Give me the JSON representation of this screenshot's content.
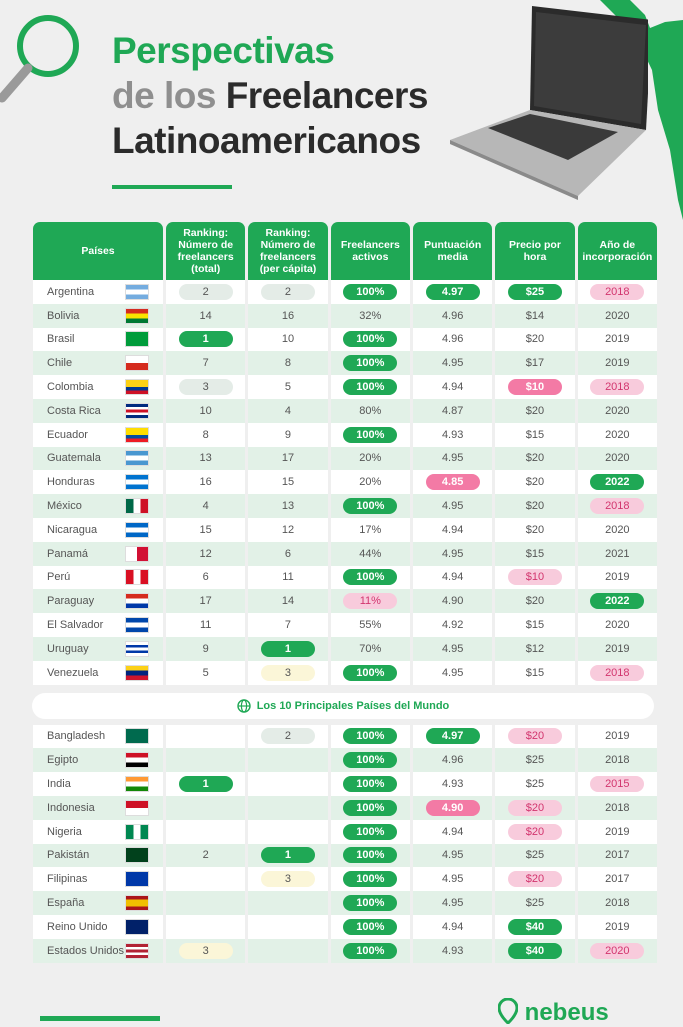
{
  "title": {
    "line1": "Perspectivas",
    "line2a": "de los ",
    "line2b": "Freelancers",
    "line3": "Latinoamericanos"
  },
  "headers": [
    "Países",
    "Ranking: Número de freelancers (total)",
    "Ranking: Número de freelancers (per cápita)",
    "Freelancers activos",
    "Puntuación media",
    "Precio por hora",
    "Año de incorporación"
  ],
  "banner": "Los 10 Principales Países del Mundo",
  "logo": "nebeus",
  "colors": {
    "green": "#1fa855",
    "pink": "#f37aa5"
  },
  "latam": [
    {
      "name": "Argentina",
      "flag": "ar",
      "c": [
        {
          "v": "2",
          "s": "pl"
        },
        {
          "v": "2",
          "s": "pl"
        },
        {
          "v": "100%",
          "s": "pg"
        },
        {
          "v": "4.97",
          "s": "pg"
        },
        {
          "v": "$25",
          "s": "pg"
        },
        {
          "v": "2018",
          "s": "pk"
        }
      ]
    },
    {
      "name": "Bolivia",
      "flag": "bo",
      "c": [
        {
          "v": "14"
        },
        {
          "v": "16"
        },
        {
          "v": "32%"
        },
        {
          "v": "4.96"
        },
        {
          "v": "$14"
        },
        {
          "v": "2020"
        }
      ]
    },
    {
      "name": "Brasil",
      "flag": "br",
      "c": [
        {
          "v": "1",
          "s": "pg"
        },
        {
          "v": "10"
        },
        {
          "v": "100%",
          "s": "pg"
        },
        {
          "v": "4.96"
        },
        {
          "v": "$20"
        },
        {
          "v": "2019"
        }
      ]
    },
    {
      "name": "Chile",
      "flag": "cl",
      "c": [
        {
          "v": "7"
        },
        {
          "v": "8"
        },
        {
          "v": "100%",
          "s": "pg"
        },
        {
          "v": "4.95"
        },
        {
          "v": "$17"
        },
        {
          "v": "2019"
        }
      ]
    },
    {
      "name": "Colombia",
      "flag": "co",
      "c": [
        {
          "v": "3",
          "s": "pl"
        },
        {
          "v": "5"
        },
        {
          "v": "100%",
          "s": "pg"
        },
        {
          "v": "4.94"
        },
        {
          "v": "$10",
          "s": "pp"
        },
        {
          "v": "2018",
          "s": "pk"
        }
      ]
    },
    {
      "name": "Costa Rica",
      "flag": "cr",
      "c": [
        {
          "v": "10"
        },
        {
          "v": "4"
        },
        {
          "v": "80%"
        },
        {
          "v": "4.87"
        },
        {
          "v": "$20"
        },
        {
          "v": "2020"
        }
      ]
    },
    {
      "name": "Ecuador",
      "flag": "ec",
      "c": [
        {
          "v": "8"
        },
        {
          "v": "9"
        },
        {
          "v": "100%",
          "s": "pg"
        },
        {
          "v": "4.93"
        },
        {
          "v": "$15"
        },
        {
          "v": "2020"
        }
      ]
    },
    {
      "name": "Guatemala",
      "flag": "gt",
      "c": [
        {
          "v": "13"
        },
        {
          "v": "17"
        },
        {
          "v": "20%"
        },
        {
          "v": "4.95"
        },
        {
          "v": "$20"
        },
        {
          "v": "2020"
        }
      ]
    },
    {
      "name": "Honduras",
      "flag": "hn",
      "c": [
        {
          "v": "16"
        },
        {
          "v": "15"
        },
        {
          "v": "20%"
        },
        {
          "v": "4.85",
          "s": "pp"
        },
        {
          "v": "$20"
        },
        {
          "v": "2022",
          "s": "pg"
        }
      ]
    },
    {
      "name": "México",
      "flag": "mx",
      "c": [
        {
          "v": "4"
        },
        {
          "v": "13"
        },
        {
          "v": "100%",
          "s": "pg"
        },
        {
          "v": "4.95"
        },
        {
          "v": "$20"
        },
        {
          "v": "2018",
          "s": "pk"
        }
      ]
    },
    {
      "name": "Nicaragua",
      "flag": "ni",
      "c": [
        {
          "v": "15"
        },
        {
          "v": "12"
        },
        {
          "v": "17%"
        },
        {
          "v": "4.94"
        },
        {
          "v": "$20"
        },
        {
          "v": "2020"
        }
      ]
    },
    {
      "name": "Panamá",
      "flag": "pa",
      "c": [
        {
          "v": "12"
        },
        {
          "v": "6"
        },
        {
          "v": "44%"
        },
        {
          "v": "4.95"
        },
        {
          "v": "$15"
        },
        {
          "v": "2021"
        }
      ]
    },
    {
      "name": "Perú",
      "flag": "pe",
      "c": [
        {
          "v": "6"
        },
        {
          "v": "11"
        },
        {
          "v": "100%",
          "s": "pg"
        },
        {
          "v": "4.94"
        },
        {
          "v": "$10",
          "s": "pk"
        },
        {
          "v": "2019"
        }
      ]
    },
    {
      "name": "Paraguay",
      "flag": "py",
      "c": [
        {
          "v": "17"
        },
        {
          "v": "14"
        },
        {
          "v": "11%",
          "s": "pk"
        },
        {
          "v": "4.90"
        },
        {
          "v": "$20"
        },
        {
          "v": "2022",
          "s": "pg"
        }
      ]
    },
    {
      "name": "El Salvador",
      "flag": "sv",
      "c": [
        {
          "v": "11"
        },
        {
          "v": "7"
        },
        {
          "v": "55%"
        },
        {
          "v": "4.92"
        },
        {
          "v": "$15"
        },
        {
          "v": "2020"
        }
      ]
    },
    {
      "name": "Uruguay",
      "flag": "uy",
      "c": [
        {
          "v": "9"
        },
        {
          "v": "1",
          "s": "pg"
        },
        {
          "v": "70%"
        },
        {
          "v": "4.95"
        },
        {
          "v": "$12"
        },
        {
          "v": "2019"
        }
      ]
    },
    {
      "name": "Venezuela",
      "flag": "ve",
      "c": [
        {
          "v": "5"
        },
        {
          "v": "3",
          "s": "py"
        },
        {
          "v": "100%",
          "s": "pg"
        },
        {
          "v": "4.95"
        },
        {
          "v": "$15"
        },
        {
          "v": "2018",
          "s": "pk"
        }
      ]
    }
  ],
  "world": [
    {
      "name": "Bangladesh",
      "flag": "bd",
      "c": [
        {
          "v": ""
        },
        {
          "v": "2",
          "s": "pl"
        },
        {
          "v": "100%",
          "s": "pg"
        },
        {
          "v": "4.97",
          "s": "pg"
        },
        {
          "v": "$20",
          "s": "pk"
        },
        {
          "v": "2019"
        }
      ]
    },
    {
      "name": "Egipto",
      "flag": "eg",
      "c": [
        {
          "v": ""
        },
        {
          "v": ""
        },
        {
          "v": "100%",
          "s": "pg"
        },
        {
          "v": "4.96"
        },
        {
          "v": "$25"
        },
        {
          "v": "2018"
        }
      ]
    },
    {
      "name": "India",
      "flag": "in",
      "c": [
        {
          "v": "1",
          "s": "pg"
        },
        {
          "v": ""
        },
        {
          "v": "100%",
          "s": "pg"
        },
        {
          "v": "4.93"
        },
        {
          "v": "$25"
        },
        {
          "v": "2015",
          "s": "pk"
        }
      ]
    },
    {
      "name": "Indonesia",
      "flag": "id",
      "c": [
        {
          "v": ""
        },
        {
          "v": ""
        },
        {
          "v": "100%",
          "s": "pg"
        },
        {
          "v": "4.90",
          "s": "pp"
        },
        {
          "v": "$20",
          "s": "pk"
        },
        {
          "v": "2018"
        }
      ]
    },
    {
      "name": "Nigeria",
      "flag": "ng",
      "c": [
        {
          "v": ""
        },
        {
          "v": ""
        },
        {
          "v": "100%",
          "s": "pg"
        },
        {
          "v": "4.94"
        },
        {
          "v": "$20",
          "s": "pk"
        },
        {
          "v": "2019"
        }
      ]
    },
    {
      "name": "Pakistán",
      "flag": "pk",
      "c": [
        {
          "v": "2"
        },
        {
          "v": "1",
          "s": "pg"
        },
        {
          "v": "100%",
          "s": "pg"
        },
        {
          "v": "4.95"
        },
        {
          "v": "$25"
        },
        {
          "v": "2017"
        }
      ]
    },
    {
      "name": "Filipinas",
      "flag": "ph",
      "c": [
        {
          "v": ""
        },
        {
          "v": "3",
          "s": "py"
        },
        {
          "v": "100%",
          "s": "pg"
        },
        {
          "v": "4.95"
        },
        {
          "v": "$20",
          "s": "pk"
        },
        {
          "v": "2017"
        }
      ]
    },
    {
      "name": "España",
      "flag": "es",
      "c": [
        {
          "v": ""
        },
        {
          "v": ""
        },
        {
          "v": "100%",
          "s": "pg"
        },
        {
          "v": "4.95"
        },
        {
          "v": "$25"
        },
        {
          "v": "2018"
        }
      ]
    },
    {
      "name": "Reino Unido",
      "flag": "gb",
      "c": [
        {
          "v": ""
        },
        {
          "v": ""
        },
        {
          "v": "100%",
          "s": "pg"
        },
        {
          "v": "4.94"
        },
        {
          "v": "$40",
          "s": "pg"
        },
        {
          "v": "2019"
        }
      ]
    },
    {
      "name": "Estados Unidos",
      "flag": "us",
      "c": [
        {
          "v": "3",
          "s": "py"
        },
        {
          "v": ""
        },
        {
          "v": "100%",
          "s": "pg"
        },
        {
          "v": "4.93"
        },
        {
          "v": "$40",
          "s": "pg"
        },
        {
          "v": "2020",
          "s": "pk"
        }
      ]
    }
  ]
}
